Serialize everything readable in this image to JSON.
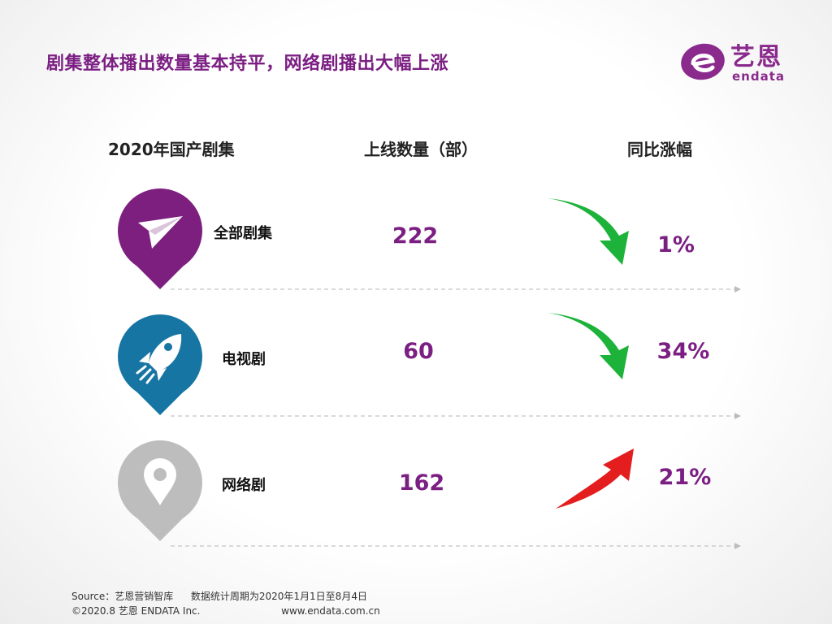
{
  "title": "剧集整体播出数量基本持平，网络剧播出大幅上涨",
  "logo": {
    "cn": "艺恩",
    "en": "endata",
    "icon": "endata-e-logo"
  },
  "headers": {
    "category": "2020年国产剧集",
    "count": "上线数量（部）",
    "change": "同比涨幅"
  },
  "colors": {
    "title": "#7b1f83",
    "value": "#7b1f83",
    "down_arrow": "#1db33a",
    "up_arrow": "#e41e1e",
    "pin_all": "#7d1f7f",
    "pin_tv": "#1775a4",
    "pin_web": "#bdbdbd"
  },
  "chart_data": {
    "type": "table",
    "columns": [
      "2020年国产剧集",
      "上线数量（部）",
      "同比涨幅"
    ],
    "rows": [
      {
        "category": "全部剧集",
        "icon": "paper-plane-icon",
        "count": 222,
        "count_label": "222",
        "change_label": "1%",
        "direction": "down"
      },
      {
        "category": "电视剧",
        "icon": "rocket-icon",
        "count": 60,
        "count_label": "60",
        "change_label": "34%",
        "direction": "down"
      },
      {
        "category": "网络剧",
        "icon": "location-pin-icon",
        "count": 162,
        "count_label": "162",
        "change_label": "21%",
        "direction": "up"
      }
    ]
  },
  "footer": {
    "source": "Source：艺恩营销智库",
    "period": "数据统计周期为2020年1月1日至8月4日",
    "copyright": "©2020.8 艺恩 ENDATA Inc.",
    "website": "www.endata.com.cn"
  }
}
